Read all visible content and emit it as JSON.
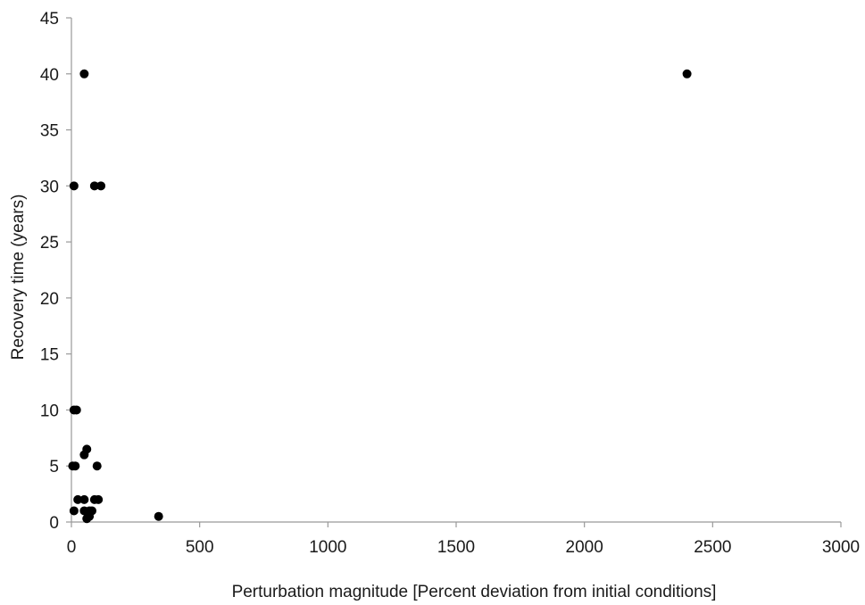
{
  "chart_data": {
    "type": "scatter",
    "title": "",
    "xlabel": "Perturbation magnitude [Percent deviation from initial conditions]",
    "ylabel": "Recovery time (years)",
    "xlim": [
      0,
      3000
    ],
    "ylim": [
      0,
      45
    ],
    "xticks": [
      0,
      500,
      1000,
      1500,
      2000,
      2500,
      3000
    ],
    "yticks": [
      0,
      5,
      10,
      15,
      20,
      25,
      30,
      35,
      40,
      45
    ],
    "xtick_labels": [
      "0",
      "500",
      "1000",
      "1500",
      "2000",
      "2500",
      "3000"
    ],
    "ytick_labels": [
      "0",
      "5",
      "10",
      "15",
      "20",
      "25",
      "30",
      "35",
      "40",
      "45"
    ],
    "grid": false,
    "legend": "none",
    "marker_color": "#000000",
    "series": [
      {
        "points": [
          [
            50,
            40
          ],
          [
            2400,
            40
          ],
          [
            10,
            30
          ],
          [
            90,
            30
          ],
          [
            115,
            30
          ],
          [
            10,
            10
          ],
          [
            20,
            10
          ],
          [
            5,
            5
          ],
          [
            15,
            5
          ],
          [
            100,
            5
          ],
          [
            50,
            6
          ],
          [
            60,
            6.5
          ],
          [
            10,
            1
          ],
          [
            25,
            2
          ],
          [
            50,
            2
          ],
          [
            90,
            2
          ],
          [
            105,
            2
          ],
          [
            50,
            1
          ],
          [
            70,
            1
          ],
          [
            80,
            1
          ],
          [
            60,
            0.3
          ],
          [
            70,
            0.5
          ],
          [
            340,
            0.5
          ]
        ]
      }
    ]
  }
}
